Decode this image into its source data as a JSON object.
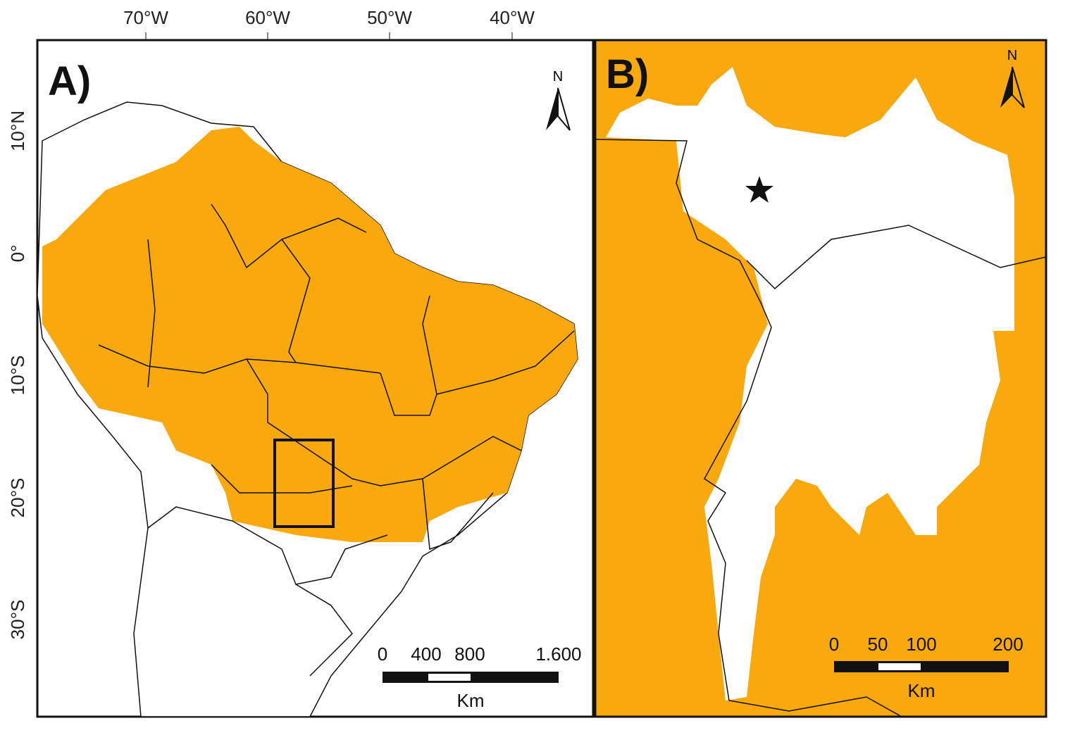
{
  "colors": {
    "habitat": "#F9A80D",
    "background": "#FFFFFF",
    "outline": "#111111"
  },
  "panel_a": {
    "label": "A)",
    "longitude_ticks": [
      "70°W",
      "60°W",
      "50°W",
      "40°W"
    ],
    "latitude_ticks": [
      "10°N",
      "0°",
      "10°S",
      "20°S",
      "30°S"
    ],
    "north_arrow": "N",
    "scale_bar": {
      "ticks": [
        "0",
        "400",
        "800",
        "1.600"
      ],
      "unit": "Km"
    }
  },
  "panel_b": {
    "label": "B)",
    "north_arrow": "N",
    "marker": "star-icon",
    "scale_bar": {
      "ticks": [
        "0",
        "50",
        "100",
        "200"
      ],
      "unit": "Km"
    }
  }
}
